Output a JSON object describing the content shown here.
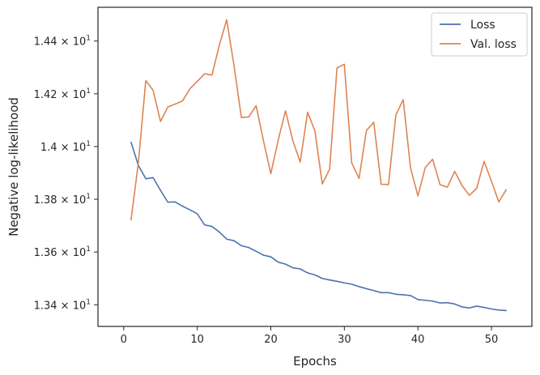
{
  "chart_data": {
    "type": "line",
    "title": "",
    "xlabel": "Epochs",
    "ylabel": "Negative log-likelihood",
    "xlim": [
      -3.5,
      55.5
    ],
    "ylim": [
      13.318,
      14.528
    ],
    "grid": false,
    "legend_position": "top-right",
    "x_ticks": [
      0,
      10,
      20,
      30,
      40,
      50
    ],
    "y_ticks": [
      {
        "value": 13.4,
        "mantissa": "1.34",
        "times": "×",
        "base": "10",
        "exponent": "1"
      },
      {
        "value": 13.6,
        "mantissa": "1.36",
        "times": "×",
        "base": "10",
        "exponent": "1"
      },
      {
        "value": 13.8,
        "mantissa": "1.38",
        "times": "×",
        "base": "10",
        "exponent": "1"
      },
      {
        "value": 14.0,
        "mantissa": "1.4",
        "times": "×",
        "base": "10",
        "exponent": "1"
      },
      {
        "value": 14.2,
        "mantissa": "1.42",
        "times": "×",
        "base": "10",
        "exponent": "1"
      },
      {
        "value": 14.4,
        "mantissa": "1.44",
        "times": "×",
        "base": "10",
        "exponent": "1"
      }
    ],
    "x": [
      1,
      2,
      3,
      4,
      5,
      6,
      7,
      8,
      9,
      10,
      11,
      12,
      13,
      14,
      15,
      16,
      17,
      18,
      19,
      20,
      21,
      22,
      23,
      24,
      25,
      26,
      27,
      28,
      29,
      30,
      31,
      32,
      33,
      34,
      35,
      36,
      37,
      38,
      39,
      40,
      41,
      42,
      43,
      44,
      45,
      46,
      47,
      48,
      49,
      50,
      51,
      52
    ],
    "series": [
      {
        "name": "Loss",
        "color": "#4c72b0",
        "values": [
          14.016,
          13.928,
          13.878,
          13.882,
          13.834,
          13.789,
          13.79,
          13.774,
          13.76,
          13.745,
          13.703,
          13.697,
          13.676,
          13.649,
          13.643,
          13.624,
          13.617,
          13.603,
          13.588,
          13.582,
          13.562,
          13.554,
          13.54,
          13.536,
          13.521,
          13.513,
          13.5,
          13.494,
          13.489,
          13.483,
          13.478,
          13.469,
          13.461,
          13.454,
          13.446,
          13.446,
          13.44,
          13.438,
          13.435,
          13.42,
          13.417,
          13.414,
          13.407,
          13.408,
          13.403,
          13.392,
          13.388,
          13.395,
          13.39,
          13.384,
          13.38,
          13.378
        ]
      },
      {
        "name": "Val. loss",
        "color": "#dd8452",
        "values": [
          13.722,
          13.94,
          14.25,
          14.213,
          14.095,
          14.15,
          14.161,
          14.173,
          14.219,
          14.247,
          14.276,
          14.271,
          14.384,
          14.481,
          14.306,
          14.11,
          14.112,
          14.155,
          14.022,
          13.897,
          14.024,
          14.135,
          14.022,
          13.941,
          14.13,
          14.059,
          13.858,
          13.914,
          14.298,
          14.312,
          13.938,
          13.879,
          14.061,
          14.092,
          13.857,
          13.856,
          14.119,
          14.178,
          13.919,
          13.813,
          13.92,
          13.952,
          13.856,
          13.846,
          13.906,
          13.852,
          13.815,
          13.842,
          13.944,
          13.868,
          13.79,
          13.836
        ]
      }
    ]
  }
}
